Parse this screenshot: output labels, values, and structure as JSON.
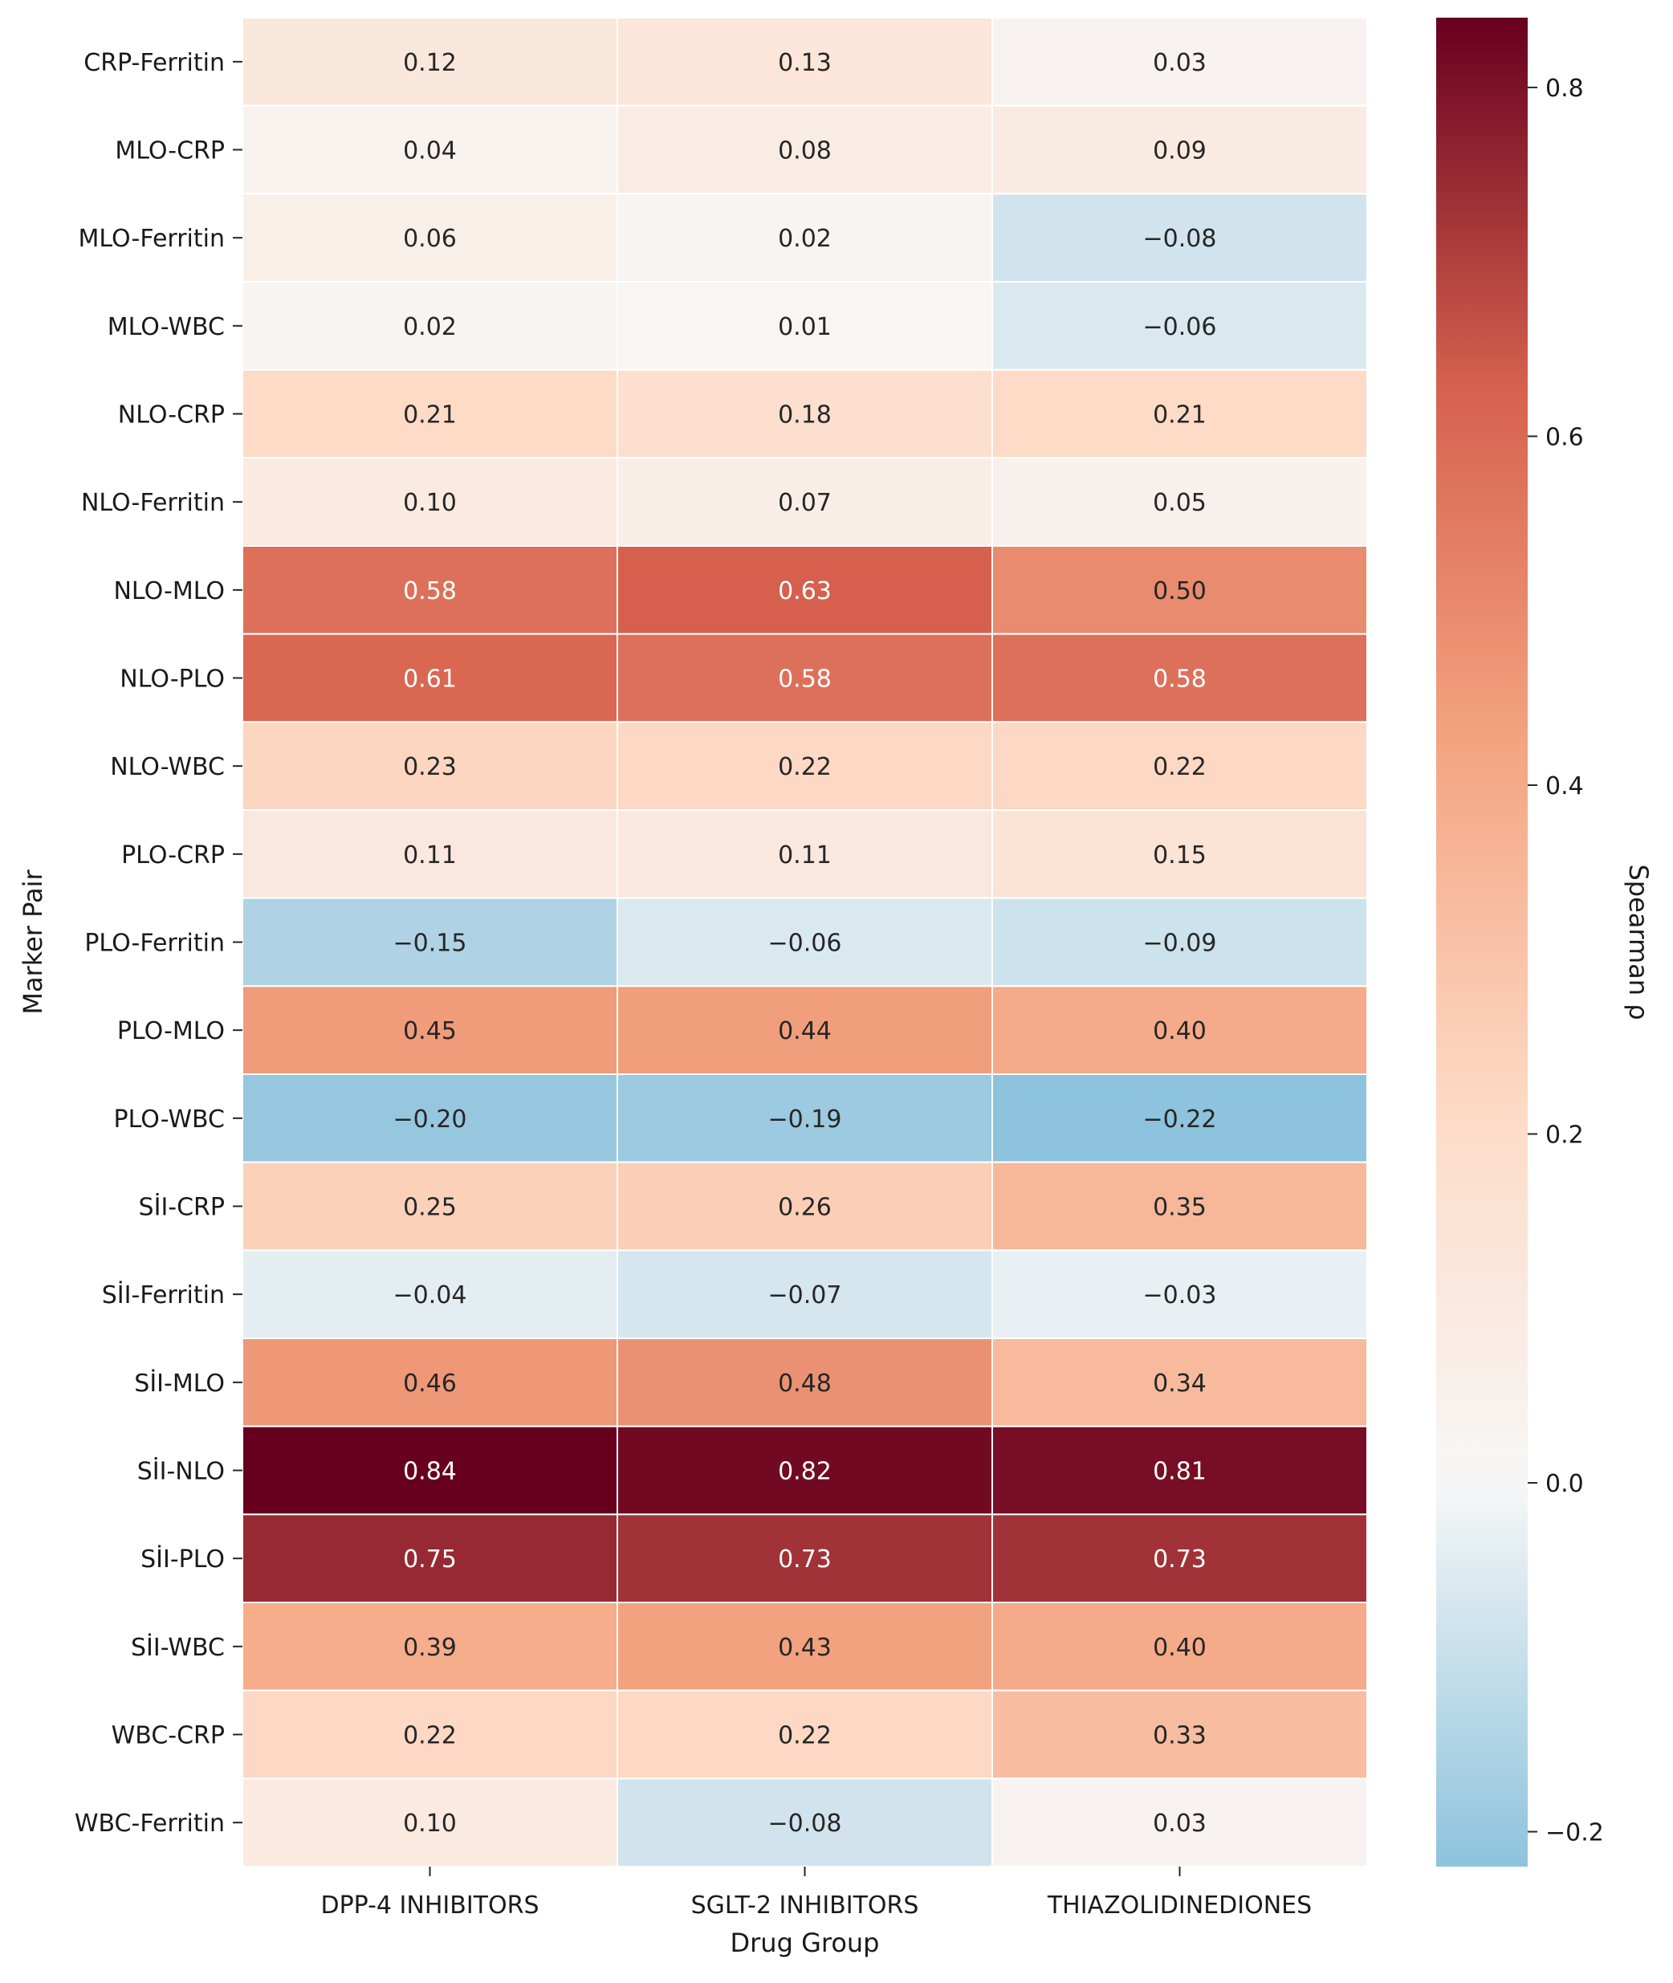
{
  "chart_data": {
    "type": "heatmap",
    "title": "",
    "xlabel": "Drug Group",
    "ylabel": "Marker Pair",
    "columns": [
      "DPP-4 INHIBITORS",
      "SGLT-2 INHIBITORS",
      "THIAZOLIDINEDIONES"
    ],
    "rows": [
      "CRP-Ferritin",
      "MLO-CRP",
      "MLO-Ferritin",
      "MLO-WBC",
      "NLO-CRP",
      "NLO-Ferritin",
      "NLO-MLO",
      "NLO-PLO",
      "NLO-WBC",
      "PLO-CRP",
      "PLO-Ferritin",
      "PLO-MLO",
      "PLO-WBC",
      "SİI-CRP",
      "SİI-Ferritin",
      "SİI-MLO",
      "SİI-NLO",
      "SİI-PLO",
      "SİI-WBC",
      "WBC-CRP",
      "WBC-Ferritin"
    ],
    "values": [
      [
        0.12,
        0.13,
        0.03
      ],
      [
        0.04,
        0.08,
        0.09
      ],
      [
        0.06,
        0.02,
        -0.08
      ],
      [
        0.02,
        0.01,
        -0.06
      ],
      [
        0.21,
        0.18,
        0.21
      ],
      [
        0.1,
        0.07,
        0.05
      ],
      [
        0.58,
        0.63,
        0.5
      ],
      [
        0.61,
        0.58,
        0.58
      ],
      [
        0.23,
        0.22,
        0.22
      ],
      [
        0.11,
        0.11,
        0.15
      ],
      [
        -0.15,
        -0.06,
        -0.09
      ],
      [
        0.45,
        0.44,
        0.4
      ],
      [
        -0.2,
        -0.19,
        -0.22
      ],
      [
        0.25,
        0.26,
        0.35
      ],
      [
        -0.04,
        -0.07,
        -0.03
      ],
      [
        0.46,
        0.48,
        0.34
      ],
      [
        0.84,
        0.82,
        0.81
      ],
      [
        0.75,
        0.73,
        0.73
      ],
      [
        0.39,
        0.43,
        0.4
      ],
      [
        0.22,
        0.22,
        0.33
      ],
      [
        0.1,
        -0.08,
        0.03
      ]
    ],
    "colorbar": {
      "label": "Spearman ρ",
      "range": [
        -0.22,
        0.84
      ],
      "ticks": [
        -0.2,
        0.0,
        0.2,
        0.4,
        0.6,
        0.8
      ],
      "tick_labels": [
        "−0.2",
        "0.0",
        "0.2",
        "0.4",
        "0.6",
        "0.8"
      ],
      "colormap": "RdBu_r",
      "center": 0
    }
  }
}
